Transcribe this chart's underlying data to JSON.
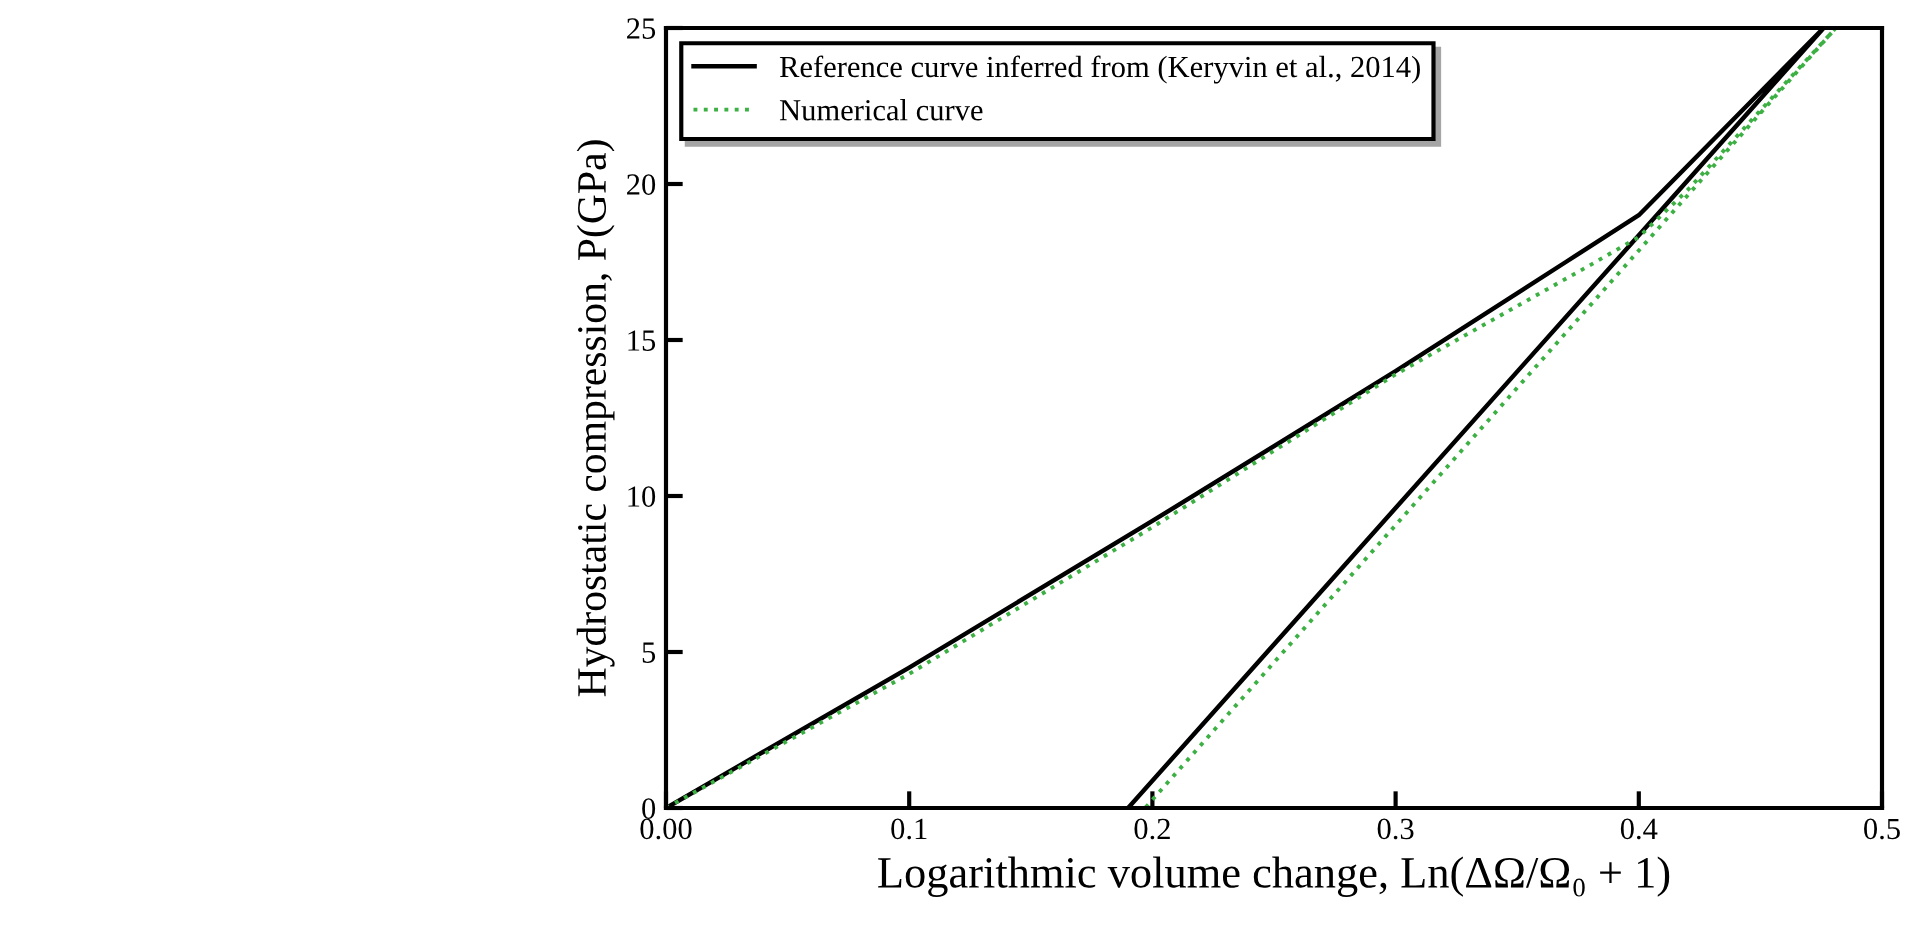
{
  "chart_data": {
    "type": "line",
    "xlabel": "Logarithmic volume change, Ln(ΔΩ/Ω₀ + 1)",
    "ylabel": "Hydrostatic compression, P(GPa)",
    "xlim": [
      0,
      0.5
    ],
    "ylim": [
      0,
      25
    ],
    "xticks": [
      {
        "value": 0,
        "label": "0.00"
      },
      0.1,
      0.2,
      0.3,
      0.4,
      0.5
    ],
    "yticks": [
      0,
      5,
      10,
      15,
      20,
      25
    ],
    "grid": false,
    "legend": "top left",
    "marker": "none",
    "series": [
      {
        "name": "Reference curve inferred from (Keryvin et al., 2014)",
        "color": "#000000",
        "line_style": "solid",
        "x": [
          0,
          0.1,
          0.2,
          0.3,
          0.37,
          0.4,
          0.476,
          0.19
        ],
        "values": [
          0,
          4.5,
          9.2,
          14.0,
          17.5,
          19.0,
          25,
          0
        ]
      },
      {
        "name": "Numerical curve",
        "color": "#3cb043",
        "line_style": "dotted",
        "x": [
          0,
          0.1,
          0.2,
          0.3,
          0.38,
          0.4,
          0.42,
          0.481,
          0.197
        ],
        "values": [
          0,
          4.3,
          9.0,
          13.9,
          17.4,
          18.3,
          19.8,
          25,
          0
        ]
      }
    ]
  }
}
